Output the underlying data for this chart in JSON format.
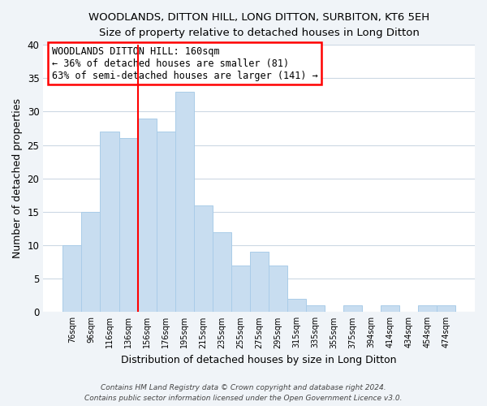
{
  "title": "WOODLANDS, DITTON HILL, LONG DITTON, SURBITON, KT6 5EH",
  "subtitle": "Size of property relative to detached houses in Long Ditton",
  "xlabel": "Distribution of detached houses by size in Long Ditton",
  "ylabel": "Number of detached properties",
  "bar_color": "#c8ddf0",
  "bar_edge_color": "#aacce8",
  "background_color": "#f0f4f8",
  "plot_bg_color": "#ffffff",
  "grid_color": "#ccd8e4",
  "bins": [
    "76sqm",
    "96sqm",
    "116sqm",
    "136sqm",
    "156sqm",
    "176sqm",
    "195sqm",
    "215sqm",
    "235sqm",
    "255sqm",
    "275sqm",
    "295sqm",
    "315sqm",
    "335sqm",
    "355sqm",
    "375sqm",
    "394sqm",
    "414sqm",
    "434sqm",
    "454sqm",
    "474sqm"
  ],
  "values": [
    10,
    15,
    27,
    26,
    29,
    27,
    33,
    16,
    12,
    7,
    9,
    7,
    2,
    1,
    0,
    1,
    0,
    1,
    0,
    1,
    1
  ],
  "ref_line_label": "WOODLANDS DITTON HILL: 160sqm",
  "ref_line_smaller": "← 36% of detached houses are smaller (81)",
  "ref_line_larger": "63% of semi-detached houses are larger (141) →",
  "ylim": [
    0,
    40
  ],
  "yticks": [
    0,
    5,
    10,
    15,
    20,
    25,
    30,
    35,
    40
  ],
  "footnote1": "Contains HM Land Registry data © Crown copyright and database right 2024.",
  "footnote2": "Contains public sector information licensed under the Open Government Licence v3.0."
}
